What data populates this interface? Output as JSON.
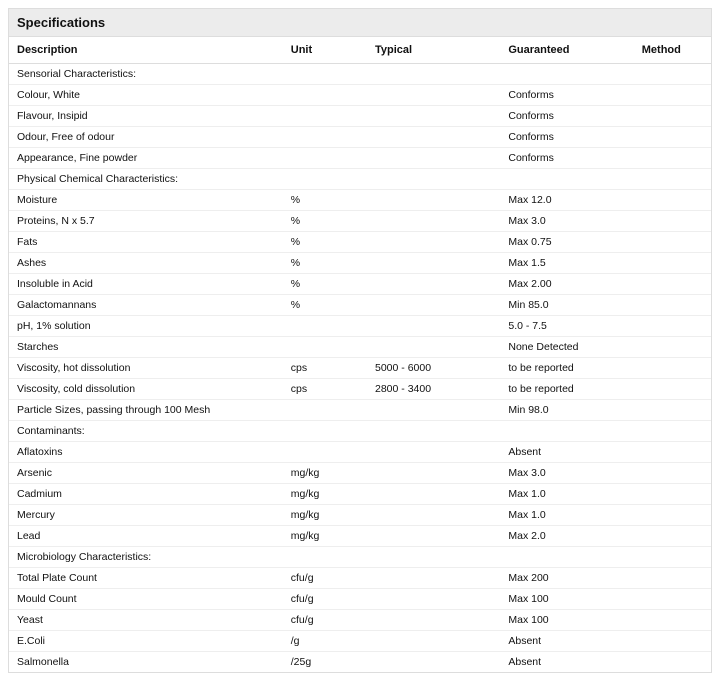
{
  "title": "Specifications",
  "columns": [
    "Description",
    "Unit",
    "Typical",
    "Guaranteed",
    "Method"
  ],
  "rows": [
    {
      "description": "Sensorial Characteristics:",
      "unit": "",
      "typical": "",
      "guaranteed": "",
      "method": ""
    },
    {
      "description": "Colour, White",
      "unit": "",
      "typical": "",
      "guaranteed": "Conforms",
      "method": ""
    },
    {
      "description": "Flavour, Insipid",
      "unit": "",
      "typical": "",
      "guaranteed": "Conforms",
      "method": ""
    },
    {
      "description": "Odour, Free of odour",
      "unit": "",
      "typical": "",
      "guaranteed": "Conforms",
      "method": ""
    },
    {
      "description": "Appearance, Fine powder",
      "unit": "",
      "typical": "",
      "guaranteed": "Conforms",
      "method": ""
    },
    {
      "description": "Physical Chemical Characteristics:",
      "unit": "",
      "typical": "",
      "guaranteed": "",
      "method": ""
    },
    {
      "description": "Moisture",
      "unit": "%",
      "typical": "",
      "guaranteed": "Max 12.0",
      "method": ""
    },
    {
      "description": "Proteins, N x 5.7",
      "unit": "%",
      "typical": "",
      "guaranteed": "Max 3.0",
      "method": ""
    },
    {
      "description": "Fats",
      "unit": "%",
      "typical": "",
      "guaranteed": "Max 0.75",
      "method": ""
    },
    {
      "description": "Ashes",
      "unit": "%",
      "typical": "",
      "guaranteed": "Max 1.5",
      "method": ""
    },
    {
      "description": "Insoluble in Acid",
      "unit": "%",
      "typical": "",
      "guaranteed": "Max 2.00",
      "method": ""
    },
    {
      "description": "Galactomannans",
      "unit": "%",
      "typical": "",
      "guaranteed": "Min 85.0",
      "method": ""
    },
    {
      "description": "pH, 1% solution",
      "unit": "",
      "typical": "",
      "guaranteed": "5.0 - 7.5",
      "method": ""
    },
    {
      "description": "Starches",
      "unit": "",
      "typical": "",
      "guaranteed": "None Detected",
      "method": ""
    },
    {
      "description": "Viscosity, hot dissolution",
      "unit": "cps",
      "typical": "5000 - 6000",
      "guaranteed": "to be reported",
      "method": ""
    },
    {
      "description": "Viscosity, cold dissolution",
      "unit": "cps",
      "typical": "2800 - 3400",
      "guaranteed": "to be reported",
      "method": ""
    },
    {
      "description": "Particle Sizes, passing through 100 Mesh",
      "unit": "",
      "typical": "",
      "guaranteed": "Min 98.0",
      "method": ""
    },
    {
      "description": "Contaminants:",
      "unit": "",
      "typical": "",
      "guaranteed": "",
      "method": ""
    },
    {
      "description": "Aflatoxins",
      "unit": "",
      "typical": "",
      "guaranteed": "Absent",
      "method": ""
    },
    {
      "description": "Arsenic",
      "unit": "mg/kg",
      "typical": "",
      "guaranteed": "Max 3.0",
      "method": ""
    },
    {
      "description": "Cadmium",
      "unit": "mg/kg",
      "typical": "",
      "guaranteed": "Max 1.0",
      "method": ""
    },
    {
      "description": "Mercury",
      "unit": "mg/kg",
      "typical": "",
      "guaranteed": "Max 1.0",
      "method": ""
    },
    {
      "description": "Lead",
      "unit": "mg/kg",
      "typical": "",
      "guaranteed": "Max 2.0",
      "method": ""
    },
    {
      "description": "Microbiology Characteristics:",
      "unit": "",
      "typical": "",
      "guaranteed": "",
      "method": ""
    },
    {
      "description": "Total Plate Count",
      "unit": "cfu/g",
      "typical": "",
      "guaranteed": "Max 200",
      "method": ""
    },
    {
      "description": "Mould Count",
      "unit": "cfu/g",
      "typical": "",
      "guaranteed": "Max 100",
      "method": ""
    },
    {
      "description": "Yeast",
      "unit": "cfu/g",
      "typical": "",
      "guaranteed": "Max 100",
      "method": ""
    },
    {
      "description": "E.Coli",
      "unit": "/g",
      "typical": "",
      "guaranteed": "Absent",
      "method": ""
    },
    {
      "description": "Salmonella",
      "unit": "/25g",
      "typical": "",
      "guaranteed": "Absent",
      "method": ""
    }
  ]
}
